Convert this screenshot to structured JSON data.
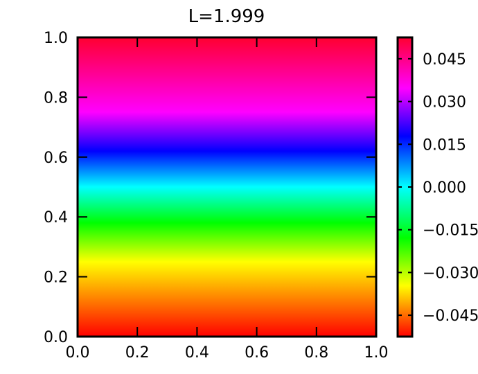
{
  "chart_data": {
    "type": "heatmap",
    "title": "L=1.999",
    "xlabel": "",
    "ylabel": "",
    "xlim": [
      0.0,
      1.0
    ],
    "ylim": [
      0.0,
      1.0
    ],
    "x_ticks": [
      "0.0",
      "0.2",
      "0.4",
      "0.6",
      "0.8",
      "1.0"
    ],
    "y_ticks": [
      "0.0",
      "0.2",
      "0.4",
      "0.6",
      "0.8",
      "1.0"
    ],
    "colormap": "hsv",
    "field": "varies with y only; value at y=0 and y=1 is the colormap maximum (red), passing through yellow, green, cyan, blue, magenta",
    "colorbar": {
      "range": [
        -0.0525,
        0.0525
      ],
      "ticks": [
        "0.045",
        "0.030",
        "0.015",
        "0.000",
        "−0.015",
        "−0.030",
        "−0.045"
      ],
      "tick_values": [
        0.045,
        0.03,
        0.015,
        0.0,
        -0.015,
        -0.03,
        -0.045
      ]
    },
    "grid": false,
    "legend": "none"
  }
}
